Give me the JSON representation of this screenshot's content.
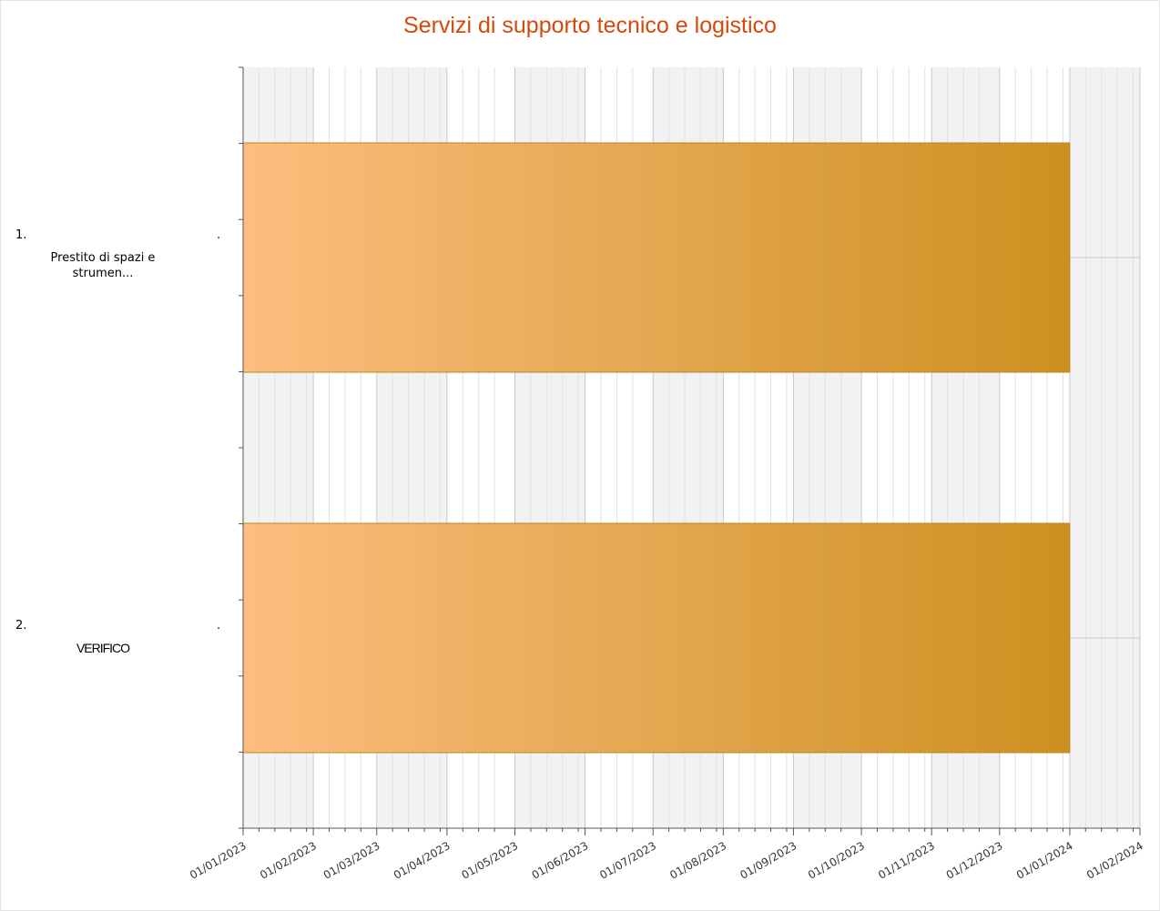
{
  "chart_data": {
    "type": "gantt",
    "title": "Servizi di supporto tecnico e logistico",
    "x_axis": {
      "type": "date",
      "range": [
        "2023-01-01",
        "2024-02-01"
      ],
      "tick_labels": [
        "01/01/2023",
        "01/02/2023",
        "01/03/2023",
        "01/04/2023",
        "01/05/2023",
        "01/06/2023",
        "01/07/2023",
        "01/08/2023",
        "01/09/2023",
        "01/10/2023",
        "01/11/2023",
        "01/12/2023",
        "01/01/2024",
        "01/02/2024"
      ],
      "tick_dates": [
        "2023-01-01",
        "2023-02-01",
        "2023-03-01",
        "2023-04-01",
        "2023-05-01",
        "2023-06-01",
        "2023-07-01",
        "2023-08-01",
        "2023-09-01",
        "2023-10-01",
        "2023-11-01",
        "2023-12-01",
        "2024-01-01",
        "2024-02-01"
      ],
      "label_rotation": "diagonal",
      "grid": true,
      "alternating_month_bands": true
    },
    "tasks": [
      {
        "number": "1.",
        "label_lines": [
          "Prestito di spazi e",
          "strumen..."
        ],
        "dot": ".",
        "start": "2023-01-01",
        "end": "2024-01-01"
      },
      {
        "number": "2.",
        "label_lines": [
          "VERIFICO"
        ],
        "dot": ".",
        "start": "2023-01-01",
        "end": "2024-01-01"
      }
    ],
    "colors": {
      "bar_gradient_start": "#fdbd7f",
      "bar_gradient_end": "#cc9020",
      "bar_border": "#b8862a",
      "band_fill": "#f2f2f2",
      "grid_major": "#c8c8c8",
      "grid_minor": "#e2e2e2",
      "axis": "#555555",
      "title": "#d34a0a"
    }
  }
}
